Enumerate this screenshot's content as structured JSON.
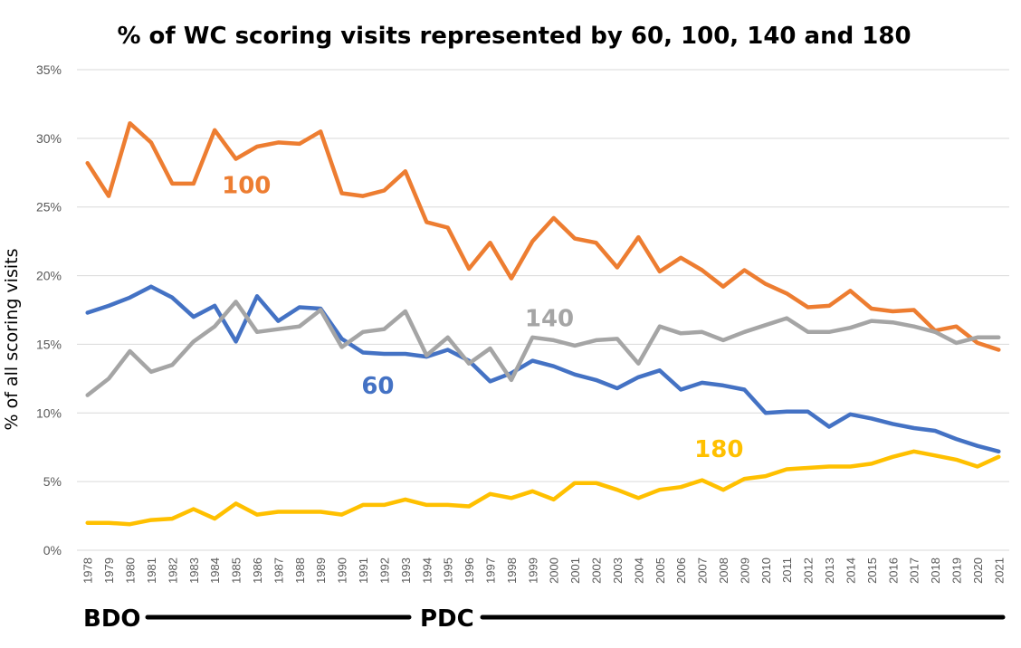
{
  "chart_data": {
    "type": "line",
    "title": "% of WC scoring visits represented by 60, 100, 140 and 180",
    "ylabel": "% of all scoring visits",
    "xlabel": "",
    "ylim": [
      0,
      35
    ],
    "yticks": [
      0,
      5,
      10,
      15,
      20,
      25,
      30,
      35
    ],
    "ytick_labels": [
      "0%",
      "5%",
      "10%",
      "15%",
      "20%",
      "25%",
      "30%",
      "35%"
    ],
    "grid": true,
    "categories": [
      "1978",
      "1979",
      "1980",
      "1981",
      "1982",
      "1983",
      "1984",
      "1985",
      "1986",
      "1987",
      "1988",
      "1989",
      "1990",
      "1991",
      "1992",
      "1993",
      "1994",
      "1995",
      "1996",
      "1997",
      "1998",
      "1999",
      "2000",
      "2001",
      "2002",
      "2003",
      "2004",
      "2005",
      "2006",
      "2007",
      "2008",
      "2009",
      "2010",
      "2011",
      "2012",
      "2013",
      "2014",
      "2015",
      "2016",
      "2017",
      "2018",
      "2019",
      "2020",
      "2021"
    ],
    "series": [
      {
        "name": "100",
        "label": "100",
        "color": "#ed7d31",
        "values": [
          28.2,
          25.8,
          31.1,
          29.7,
          26.7,
          26.7,
          30.6,
          28.5,
          29.4,
          29.7,
          29.6,
          30.5,
          26.0,
          25.8,
          26.2,
          27.6,
          23.9,
          23.5,
          20.5,
          22.4,
          19.8,
          22.5,
          24.2,
          22.7,
          22.4,
          20.6,
          22.8,
          20.3,
          21.3,
          20.4,
          19.2,
          20.4,
          19.4,
          18.7,
          17.7,
          17.8,
          18.9,
          17.6,
          17.4,
          17.5,
          16.0,
          16.3,
          15.1,
          14.6
        ]
      },
      {
        "name": "60",
        "label": "60",
        "color": "#4472c4",
        "values": [
          17.3,
          17.8,
          18.4,
          19.2,
          18.4,
          17.0,
          17.8,
          15.2,
          18.5,
          16.7,
          17.7,
          17.6,
          15.4,
          14.4,
          14.3,
          14.3,
          14.1,
          14.6,
          13.8,
          12.3,
          12.9,
          13.8,
          13.4,
          12.8,
          12.4,
          11.8,
          12.6,
          13.1,
          11.7,
          12.2,
          12.0,
          11.7,
          10.0,
          10.1,
          10.1,
          9.0,
          9.9,
          9.6,
          9.2,
          8.9,
          8.7,
          8.1,
          7.6,
          7.2
        ]
      },
      {
        "name": "140",
        "label": "140",
        "color": "#a5a5a5",
        "values": [
          11.3,
          12.5,
          14.5,
          13.0,
          13.5,
          15.2,
          16.3,
          18.1,
          15.9,
          16.1,
          16.3,
          17.5,
          14.8,
          15.9,
          16.1,
          17.4,
          14.2,
          15.5,
          13.6,
          14.7,
          12.4,
          15.5,
          15.3,
          14.9,
          15.3,
          15.4,
          13.6,
          16.3,
          15.8,
          15.9,
          15.3,
          15.9,
          16.4,
          16.9,
          15.9,
          15.9,
          16.2,
          16.7,
          16.6,
          16.3,
          15.9,
          15.1,
          15.5,
          15.5
        ]
      },
      {
        "name": "180",
        "label": "180",
        "color": "#ffc000",
        "values": [
          2.0,
          2.0,
          1.9,
          2.2,
          2.3,
          3.0,
          2.3,
          3.4,
          2.6,
          2.8,
          2.8,
          2.8,
          2.6,
          3.3,
          3.3,
          3.7,
          3.3,
          3.3,
          3.2,
          4.1,
          3.8,
          4.3,
          3.7,
          4.9,
          4.9,
          4.4,
          3.8,
          4.4,
          4.6,
          5.1,
          4.4,
          5.2,
          5.4,
          5.9,
          6.0,
          6.1,
          6.1,
          6.3,
          6.8,
          7.2,
          6.9,
          6.6,
          6.1,
          6.8
        ]
      }
    ],
    "eras": [
      {
        "label": "BDO",
        "from": "1978",
        "to": "1993"
      },
      {
        "label": "PDC",
        "from": "1994",
        "to": "2021"
      }
    ]
  }
}
